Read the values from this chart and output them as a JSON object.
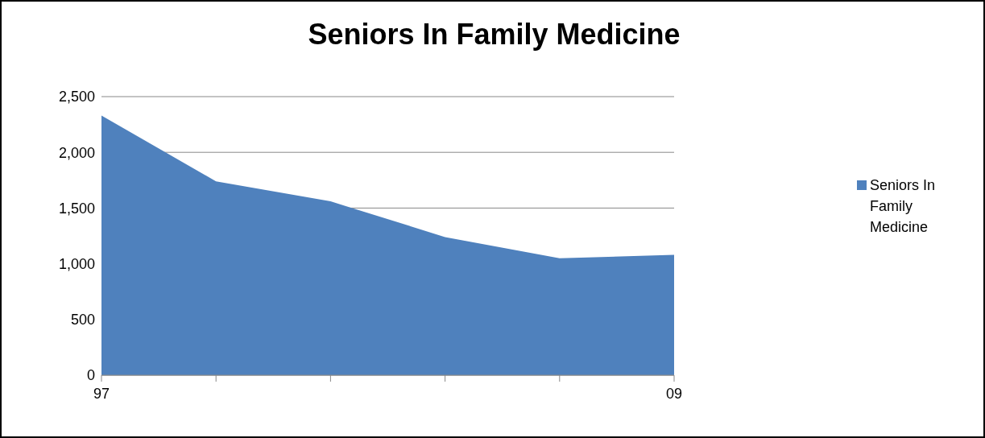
{
  "chart_data": {
    "type": "area",
    "title": "Seniors In Family Medicine",
    "categories": [
      "97",
      null,
      null,
      null,
      null,
      "09"
    ],
    "series": [
      {
        "name": "Seniors In Family Medicine",
        "color": "#4f81bd",
        "values": [
          2330,
          1740,
          1560,
          1240,
          1050,
          1080
        ]
      }
    ],
    "ylim": [
      0,
      2500
    ],
    "yticks": [
      {
        "value": 0,
        "label": "0"
      },
      {
        "value": 500,
        "label": "500"
      },
      {
        "value": 1000,
        "label": "1,000"
      },
      {
        "value": 1500,
        "label": "1,500"
      },
      {
        "value": 2000,
        "label": "2,000"
      },
      {
        "value": 2500,
        "label": "2,500"
      }
    ],
    "grid": "y",
    "legend": "right"
  }
}
